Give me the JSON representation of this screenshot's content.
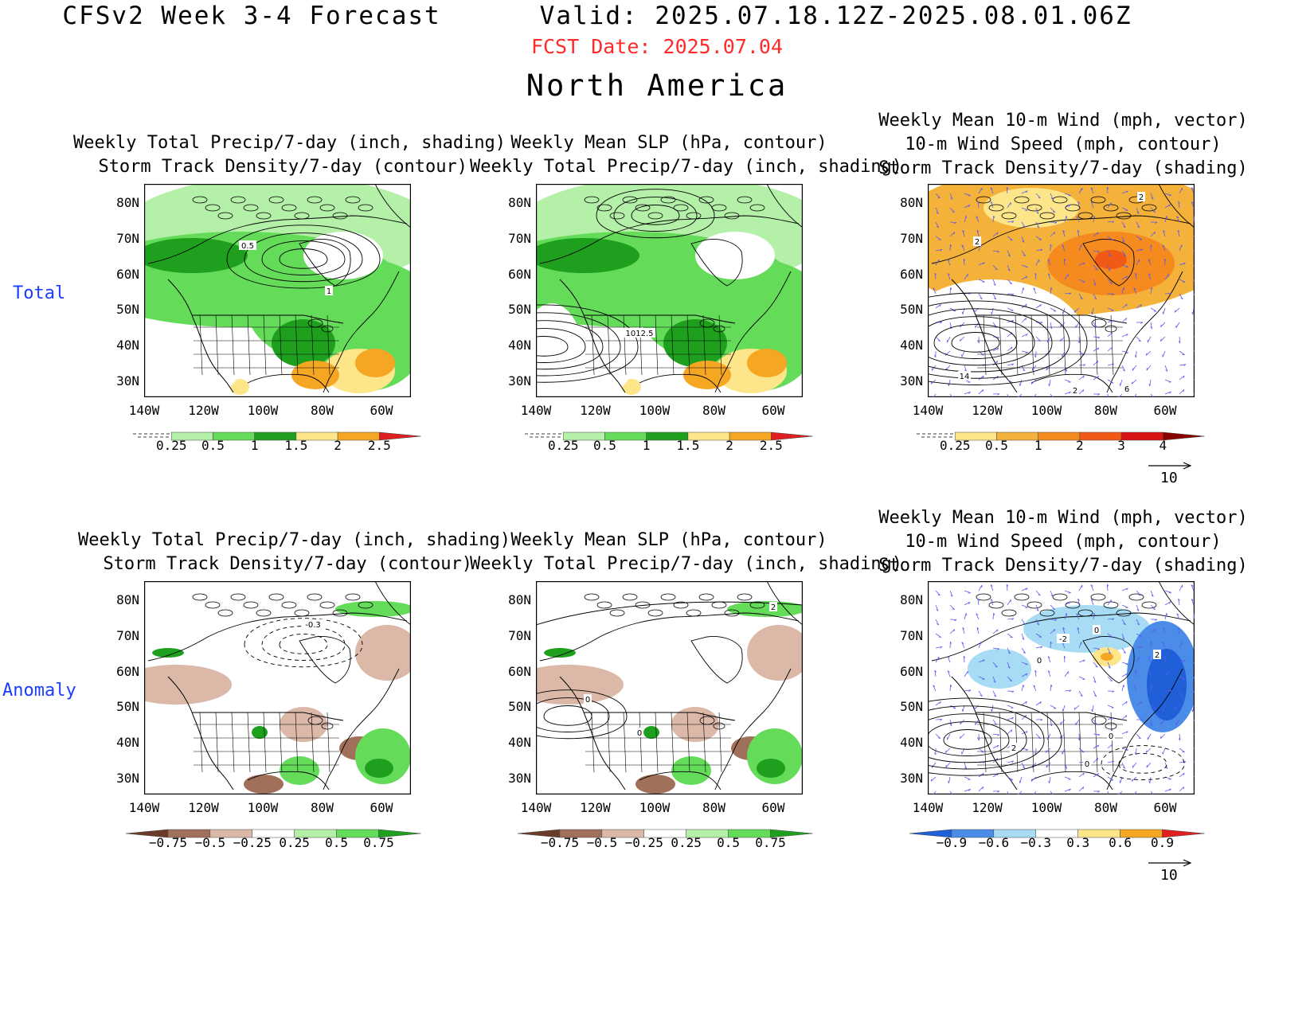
{
  "header": {
    "title": "CFSv2 Week 3-4 Forecast      Valid: 2025.07.18.12Z-2025.08.01.06Z",
    "fcst_date": "FCST Date: 2025.07.04",
    "region": "North America"
  },
  "rows": {
    "total": "Total",
    "anomaly": "Anomaly"
  },
  "axes": {
    "lat": [
      "80N",
      "70N",
      "60N",
      "50N",
      "40N",
      "30N"
    ],
    "lon": [
      "140W",
      "120W",
      "100W",
      "80W",
      "60W"
    ]
  },
  "panels": {
    "p1": {
      "title": "Weekly Total Precip/7-day (inch, shading)\n  Storm Track Density/7-day (contour)",
      "cbar": [
        "0.25",
        "0.5",
        "1",
        "1.5",
        "2",
        "2.5"
      ],
      "contour_labels": [
        "0.5",
        "1"
      ]
    },
    "p2": {
      "title": "Weekly Mean SLP (hPa, contour)\nWeekly Total Precip/7-day (inch, shading)",
      "cbar": [
        "0.25",
        "0.5",
        "1",
        "1.5",
        "2",
        "2.5"
      ],
      "contour_labels": [
        "1012.5"
      ]
    },
    "p3": {
      "title": "Weekly Mean 10-m Wind (mph, vector)\n10-m Wind Speed (mph, contour)\nStorm Track Density/7-day (shading)",
      "cbar": [
        "0.25",
        "0.5",
        "1",
        "2",
        "3",
        "4"
      ],
      "contour_labels": [
        "2",
        "2",
        "14",
        "2",
        "6"
      ],
      "vector_ref": "10"
    },
    "p4": {
      "title": "Weekly Total Precip/7-day (inch, shading)\n  Storm Track Density/7-day (contour)",
      "cbar": [
        "−0.75",
        "−0.5",
        "−0.25",
        "0.25",
        "0.5",
        "0.75"
      ],
      "contour_labels": [
        "-0.3"
      ]
    },
    "p5": {
      "title": "Weekly Mean SLP (hPa, contour)\nWeekly Total Precip/7-day (inch, shading)",
      "cbar": [
        "−0.75",
        "−0.5",
        "−0.25",
        "0.25",
        "0.5",
        "0.75"
      ],
      "contour_labels": [
        "2",
        "0",
        "0"
      ]
    },
    "p6": {
      "title": "Weekly Mean 10-m Wind (mph, vector)\n10-m Wind Speed (mph, contour)\nStorm Track Density/7-day (shading)",
      "cbar": [
        "−0.9",
        "−0.6",
        "−0.3",
        "0.3",
        "0.6",
        "0.9"
      ],
      "contour_labels": [
        "-2",
        "0",
        "0",
        "2",
        "0",
        "2",
        "0"
      ],
      "vector_ref": "10"
    }
  },
  "colors": {
    "precip": [
      "#ffffff",
      "#b4f0a8",
      "#64dc5a",
      "#1ea01e",
      "#fde68a",
      "#f5a623",
      "#e02020"
    ],
    "precip_anom": [
      "#6b3b2a",
      "#a0705a",
      "#dbb8a8",
      "#ffffff",
      "#b4f0a8",
      "#64dc5a",
      "#1ea01e"
    ],
    "storm": [
      "#ffffff",
      "#fde68a",
      "#f5b23a",
      "#f58a1e",
      "#f05a14",
      "#d81414",
      "#8b0000"
    ],
    "storm_anom": [
      "#1f5fd8",
      "#4a8ce8",
      "#a8dcf5",
      "#ffffff",
      "#fde68a",
      "#f5a623",
      "#e02020"
    ],
    "title_red": "#ff2a2a",
    "row_label_blue": "#1a3dff",
    "vector": "#5a5af0"
  }
}
